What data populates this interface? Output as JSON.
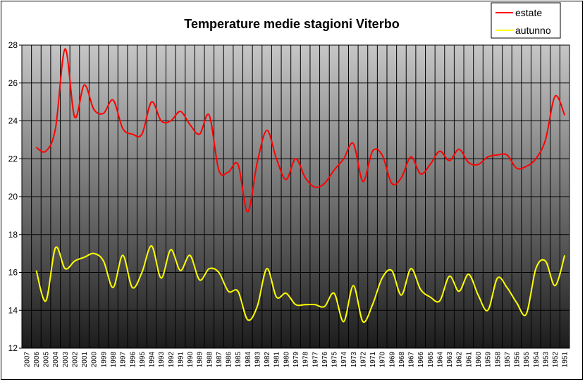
{
  "chart_data": {
    "type": "line",
    "title": "Temperature medie stagioni Viterbo",
    "xlabel": "",
    "ylabel": "",
    "ylim": [
      12,
      28
    ],
    "yticks": [
      12,
      14,
      16,
      18,
      20,
      22,
      24,
      26,
      28
    ],
    "grid": true,
    "legend_position": "top-right",
    "x": [
      "2007",
      "2006",
      "2005",
      "2004",
      "2003",
      "2002",
      "2001",
      "2000",
      "1999",
      "1998",
      "1997",
      "1996",
      "1995",
      "1994",
      "1993",
      "1992",
      "1991",
      "1990",
      "1989",
      "1988",
      "1987",
      "1986",
      "1985",
      "1984",
      "1983",
      "1982",
      "1981",
      "1980",
      "1979",
      "1978",
      "1977",
      "1976",
      "1975",
      "1974",
      "1973",
      "1972",
      "1971",
      "1970",
      "1969",
      "1968",
      "1967",
      "1966",
      "1965",
      "1964",
      "1963",
      "1962",
      "1961",
      "1960",
      "1959",
      "1958",
      "1957",
      "1956",
      "1955",
      "1954",
      "1953",
      "1952",
      "1951"
    ],
    "series": [
      {
        "name": "estate",
        "color": "#ff0000",
        "x": [
          "2006",
          "2005",
          "2004",
          "2003",
          "2002",
          "2001",
          "2000",
          "1999",
          "1998",
          "1997",
          "1996",
          "1995",
          "1994",
          "1993",
          "1992",
          "1991",
          "1990",
          "1989",
          "1988",
          "1987",
          "1986",
          "1985",
          "1984",
          "1983",
          "1982",
          "1981",
          "1980",
          "1979",
          "1978",
          "1977",
          "1976",
          "1975",
          "1974",
          "1973",
          "1972",
          "1971",
          "1970",
          "1969",
          "1968",
          "1967",
          "1966",
          "1965",
          "1964",
          "1963",
          "1962",
          "1961",
          "1960",
          "1959",
          "1958",
          "1957",
          "1956",
          "1955",
          "1954",
          "1953",
          "1952",
          "1951"
        ],
        "values": [
          22.6,
          22.4,
          23.6,
          27.8,
          24.2,
          25.9,
          24.6,
          24.4,
          25.1,
          23.6,
          23.3,
          23.3,
          25.0,
          24.0,
          24.0,
          24.5,
          23.8,
          23.3,
          24.3,
          21.4,
          21.3,
          21.7,
          19.2,
          21.8,
          23.5,
          22.0,
          20.9,
          22.0,
          21.0,
          20.5,
          20.7,
          21.4,
          22.0,
          22.8,
          20.8,
          22.4,
          22.2,
          20.7,
          21.0,
          22.1,
          21.2,
          21.7,
          22.4,
          21.9,
          22.5,
          21.8,
          21.7,
          22.1,
          22.2,
          22.2,
          21.5,
          21.6,
          22.0,
          23.0,
          25.3,
          24.3
        ]
      },
      {
        "name": "autunno",
        "color": "#ffff00",
        "x": [
          "2006",
          "2005",
          "2004",
          "2003",
          "2002",
          "2001",
          "2000",
          "1999",
          "1998",
          "1997",
          "1996",
          "1995",
          "1994",
          "1993",
          "1992",
          "1991",
          "1990",
          "1989",
          "1988",
          "1987",
          "1986",
          "1985",
          "1984",
          "1983",
          "1982",
          "1981",
          "1980",
          "1979",
          "1978",
          "1977",
          "1976",
          "1975",
          "1974",
          "1973",
          "1972",
          "1971",
          "1970",
          "1969",
          "1968",
          "1967",
          "1966",
          "1965",
          "1964",
          "1963",
          "1962",
          "1961",
          "1960",
          "1959",
          "1958",
          "1957",
          "1956",
          "1955",
          "1954",
          "1953",
          "1952",
          "1951"
        ],
        "values": [
          16.1,
          14.5,
          17.3,
          16.2,
          16.6,
          16.8,
          17.0,
          16.6,
          15.2,
          16.9,
          15.2,
          16.0,
          17.4,
          15.7,
          17.2,
          16.1,
          16.9,
          15.6,
          16.2,
          16.0,
          15.0,
          15.0,
          13.5,
          14.2,
          16.2,
          14.7,
          14.9,
          14.3,
          14.3,
          14.3,
          14.2,
          14.9,
          13.4,
          15.3,
          13.4,
          14.3,
          15.7,
          16.1,
          14.8,
          16.2,
          15.1,
          14.7,
          14.5,
          15.8,
          15.0,
          15.9,
          14.8,
          14.0,
          15.7,
          15.2,
          14.4,
          13.8,
          16.2,
          16.6,
          15.3,
          16.9
        ]
      }
    ]
  }
}
